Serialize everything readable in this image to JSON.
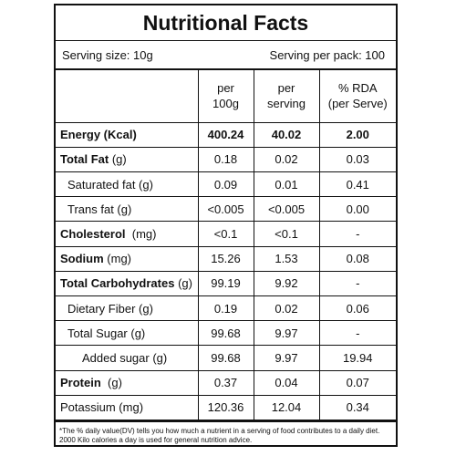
{
  "title": "Nutritional Facts",
  "serving": {
    "size": "Serving size: 10g",
    "per_pack": "Serving per pack: 100"
  },
  "header": {
    "per100_line1": "per",
    "per100_line2": "100g",
    "perserving_line1": "per",
    "perserving_line2": "serving",
    "rda_line1": "% RDA",
    "rda_line2": "(per Serve)"
  },
  "rows": [
    {
      "name": "Energy (Kcal)",
      "unit": "",
      "per100": "400.24",
      "perserving": "40.02",
      "rda": "2.00"
    },
    {
      "name": "Total Fat",
      "unit": "(g)",
      "per100": "0.18",
      "perserving": "0.02",
      "rda": "0.03"
    },
    {
      "name": "Saturated fat (g)",
      "unit": "",
      "per100": "0.09",
      "perserving": "0.01",
      "rda": "0.41"
    },
    {
      "name": "Trans fat (g)",
      "unit": "",
      "per100": "<0.005",
      "perserving": "<0.005",
      "rda": "0.00"
    },
    {
      "name": "Cholesterol",
      "unit": "(mg)",
      "per100": "<0.1",
      "perserving": "<0.1",
      "rda": "-"
    },
    {
      "name": "Sodium",
      "unit": "(mg)",
      "per100": "15.26",
      "perserving": "1.53",
      "rda": "0.08"
    },
    {
      "name": "Total Carbohydrates",
      "unit": "(g)",
      "per100": "99.19",
      "perserving": "9.92",
      "rda": "-"
    },
    {
      "name": "Dietary Fiber (g)",
      "unit": "",
      "per100": "0.19",
      "perserving": "0.02",
      "rda": "0.06"
    },
    {
      "name": "Total Sugar (g)",
      "unit": "",
      "per100": "99.68",
      "perserving": "9.97",
      "rda": "-"
    },
    {
      "name": "Added sugar (g)",
      "unit": "",
      "per100": "99.68",
      "perserving": "9.97",
      "rda": "19.94"
    },
    {
      "name": "Protein",
      "unit": "(g)",
      "per100": "0.37",
      "perserving": "0.04",
      "rda": "0.07"
    },
    {
      "name": "Potassium (mg)",
      "unit": "",
      "per100": "120.36",
      "perserving": "12.04",
      "rda": "0.34"
    }
  ],
  "footnote": "*The % daily value(DV) tells you how much a nutrient in a serving of food contributes to a daily diet. 2000 Kilo calories a day is used for general nutrition advice."
}
